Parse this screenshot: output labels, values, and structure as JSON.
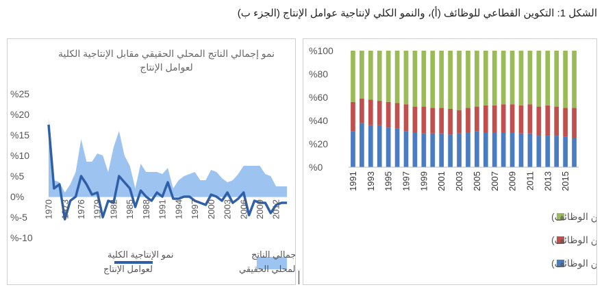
{
  "figure_title": "الشكل 1: التكوين القطاعي للوظائف (أ)، والنمو الكلي لإنتاجية عوامل الإنتاج (الجزء ب)",
  "chart_data": [
    {
      "type": "area+line",
      "title_lines": [
        "نمو إجمالي الناتج المحلي الحقيقي مقابل الإنتاجية الكلية",
        "لعوامل الإنتاج"
      ],
      "ylim": [
        -10,
        25
      ],
      "y_ticks": [
        "%25",
        "%20",
        "%15",
        "%10",
        "%5",
        "0%",
        "%-5",
        "%-10"
      ],
      "x_ticks": [
        "1970",
        "1973",
        "1976",
        "1979",
        "1982",
        "1985",
        "1988",
        "1991",
        "1994",
        "1997",
        "2000",
        "2003",
        "2006",
        "2009",
        "2012"
      ],
      "x": [
        1970,
        1971,
        1972,
        1973,
        1974,
        1975,
        1976,
        1977,
        1978,
        1979,
        1980,
        1981,
        1982,
        1983,
        1984,
        1985,
        1986,
        1987,
        1988,
        1989,
        1990,
        1991,
        1992,
        1993,
        1994,
        1995,
        1996,
        1997,
        1998,
        1999,
        2000,
        2001,
        2002,
        2003,
        2004,
        2005,
        2006,
        2007,
        2008,
        2009,
        2010,
        2011,
        2012,
        2013,
        2014
      ],
      "series": [
        {
          "name": "نمو إجمالي الناتج المحلي الحقيقي",
          "render": "area",
          "color": "#9dc3f0",
          "values": [
            19,
            4,
            3.5,
            1,
            3,
            6,
            14,
            8.5,
            8.5,
            10.5,
            10,
            6,
            12,
            16,
            10,
            7.5,
            2,
            8,
            6,
            6,
            6,
            5.5,
            7,
            2,
            4,
            5,
            5.5,
            6,
            4,
            4,
            6.5,
            6,
            4.5,
            3.5,
            4,
            5.5,
            7.5,
            7.5,
            7.5,
            7.5,
            5.5,
            5,
            2.5,
            2.5,
            2.5
          ]
        },
        {
          "name": "نمو الإنتاجية الكلية لعوامل الإنتاج",
          "render": "line",
          "color": "#2e5fa8",
          "values": [
            17.5,
            2,
            3,
            -5.5,
            -1,
            0,
            5,
            3,
            0.5,
            1,
            -5,
            -1,
            -1.5,
            5,
            3.5,
            2,
            -2.5,
            1.5,
            0,
            -1,
            1,
            0,
            3.5,
            -0.5,
            -0.5,
            0,
            0,
            -1,
            -1.5,
            -2,
            0.5,
            0,
            -1,
            1,
            -1.5,
            -0.5,
            1,
            -4.5,
            -1,
            -1.5,
            -1.5,
            -4,
            -2,
            -1.5,
            -1.5
          ]
        }
      ],
      "legend": [
        {
          "label_lines": [
            "نمو إجمالي الناتج",
            "المحلي الحقيقي"
          ],
          "color": "#9dc3f0",
          "kind": "area"
        },
        {
          "label_lines": [
            "نمو الإنتاجية الكلية",
            "لعوامل الإنتاج"
          ],
          "color": "#2e5fa8",
          "kind": "line"
        }
      ]
    },
    {
      "type": "stacked-bar",
      "ylim": [
        0,
        100
      ],
      "y_ticks": [
        "%100",
        "%80",
        "%60",
        "%40",
        "%20",
        "%0"
      ],
      "categories": [
        "1991",
        "1992",
        "1993",
        "1994",
        "1995",
        "1996",
        "1997",
        "1998",
        "1999",
        "2000",
        "2001",
        "2002",
        "2003",
        "2004",
        "2005",
        "2006",
        "2007",
        "2008",
        "2009",
        "2010",
        "2011",
        "2012",
        "2013",
        "2014",
        "2015",
        "2016"
      ],
      "x_tick_labels": [
        "1991",
        "1993",
        "1995",
        "1997",
        "1999",
        "2001",
        "2003",
        "2005",
        "2007",
        "2009",
        "2011",
        "2013",
        "2015"
      ],
      "series": [
        {
          "name": "الزراعة (% من الوظائف)",
          "color": "#4a7cc2",
          "values": [
            31,
            38,
            36,
            36,
            34,
            33,
            31,
            30,
            29,
            29,
            29,
            28,
            29,
            30,
            31,
            30,
            30,
            30,
            30,
            29,
            29,
            27,
            27,
            27,
            26,
            25
          ]
        },
        {
          "name": "الصناعة (% من الوظائف)",
          "color": "#c0504d",
          "values": [
            25,
            21,
            22,
            21,
            22,
            22,
            23,
            22,
            23,
            22,
            22,
            22,
            20,
            21,
            21,
            23,
            23,
            24,
            24,
            24,
            25,
            25,
            26,
            25,
            25,
            26
          ]
        },
        {
          "name": "الخدمات (% من الوظائف)",
          "color": "#9bbb59",
          "values": [
            44,
            41,
            42,
            43,
            44,
            45,
            46,
            48,
            48,
            49,
            49,
            50,
            51,
            49,
            48,
            47,
            47,
            46,
            46,
            47,
            46,
            48,
            47,
            48,
            49,
            49
          ]
        }
      ],
      "legend_order": [
        "الخدمات (% من الوظائف)",
        "الصناعة (% من الوظائف)",
        "الزراعة (% من الوظائف)"
      ]
    }
  ]
}
